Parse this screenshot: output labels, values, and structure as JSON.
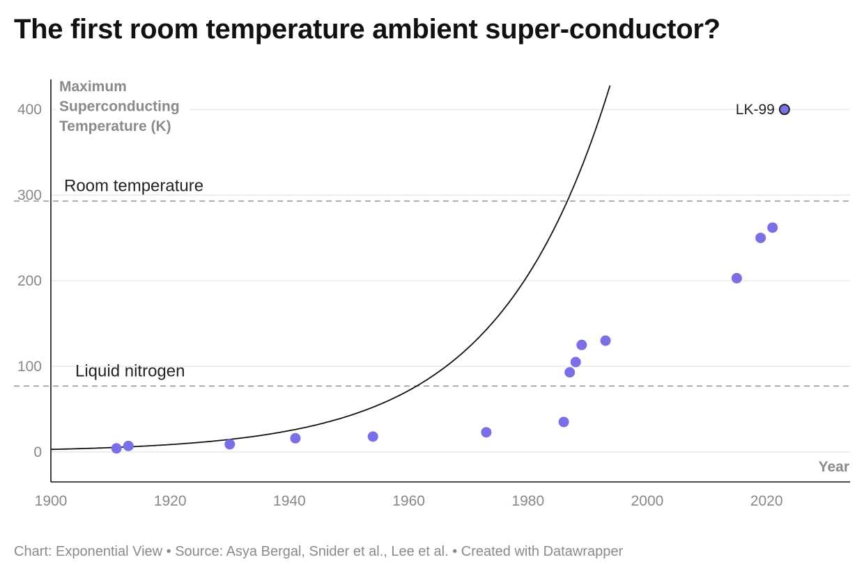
{
  "title": "The first room temperature ambient super-conductor?",
  "footer": "Chart: Exponential View • Source: Asya Bergal, Snider et al., Lee et al. • Created with Datawrapper",
  "chart_data": {
    "type": "scatter",
    "title": "The first room temperature ambient super-conductor?",
    "ylabel_lines": [
      "Maximum",
      "Superconducting",
      "Temperature (K)"
    ],
    "xlabel": "Year",
    "xlim": [
      1900,
      2034
    ],
    "ylim": [
      -35,
      440
    ],
    "x_ticks": [
      1900,
      1920,
      1940,
      1960,
      1980,
      2000,
      2020
    ],
    "y_ticks": [
      0,
      100,
      200,
      300,
      400
    ],
    "grid": "horizontal",
    "colors": {
      "points": "#7b6fe6",
      "highlight_stroke": "#222222",
      "trend": "#111111",
      "reference": "#999999",
      "grid": "#e4e4e4"
    },
    "points": [
      {
        "x": 1911,
        "y": 4.2
      },
      {
        "x": 1913,
        "y": 7
      },
      {
        "x": 1930,
        "y": 9
      },
      {
        "x": 1941,
        "y": 16
      },
      {
        "x": 1954,
        "y": 18
      },
      {
        "x": 1973,
        "y": 23
      },
      {
        "x": 1986,
        "y": 35
      },
      {
        "x": 1987,
        "y": 93
      },
      {
        "x": 1988,
        "y": 105
      },
      {
        "x": 1989,
        "y": 125
      },
      {
        "x": 1993,
        "y": 130
      },
      {
        "x": 2015,
        "y": 203
      },
      {
        "x": 2019,
        "y": 250
      },
      {
        "x": 2021,
        "y": 262
      }
    ],
    "highlight": {
      "x": 2023,
      "y": 400,
      "label": "LK-99"
    },
    "reference_lines": [
      {
        "y": 293,
        "label": "Room temperature"
      },
      {
        "y": 77,
        "label": "Liquid nitrogen"
      }
    ],
    "trend": {
      "type": "exponential",
      "x0": 1900,
      "y0": 3,
      "doubling_years": 13.1
    }
  }
}
